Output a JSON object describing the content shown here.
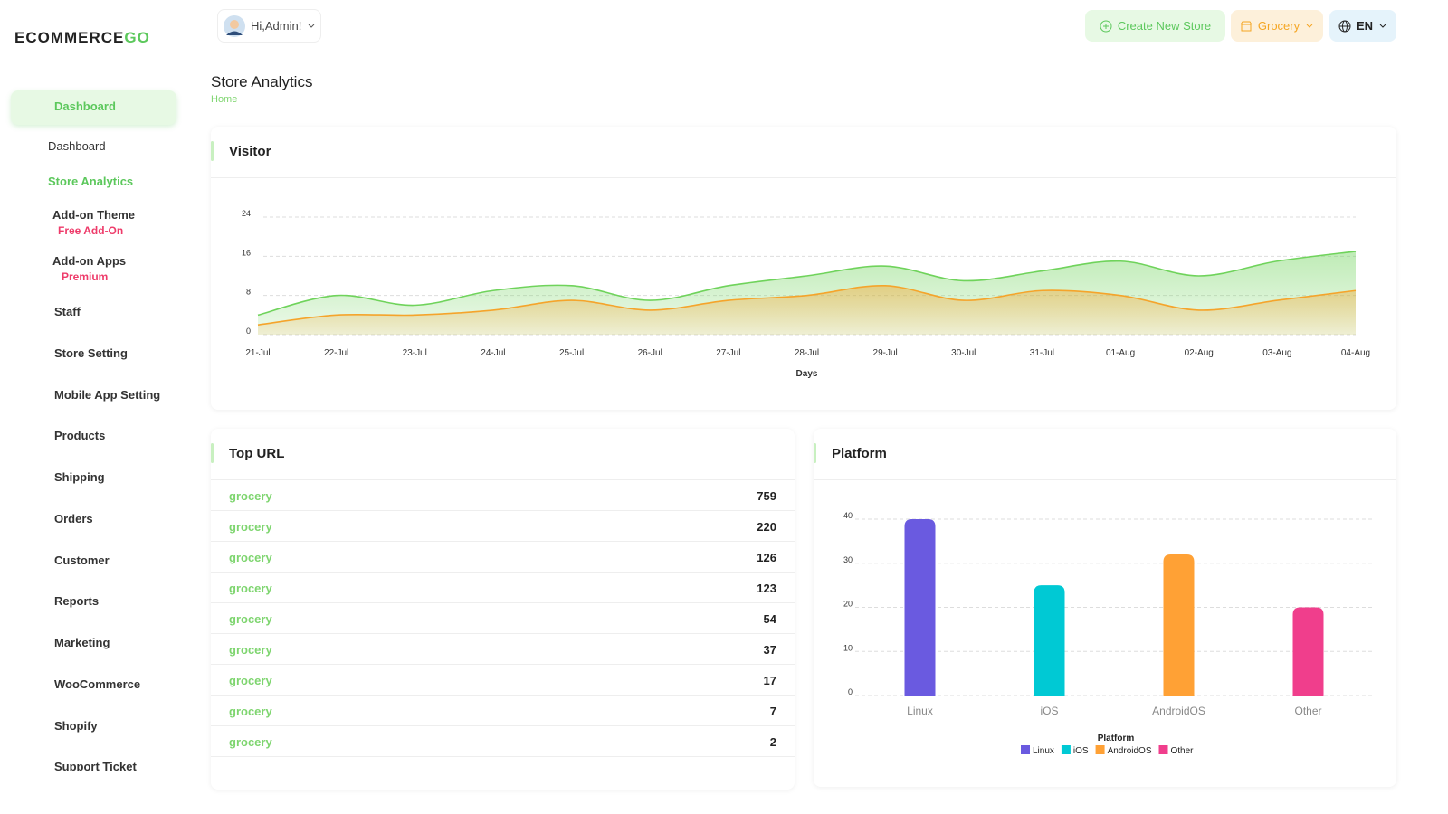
{
  "header": {
    "logo_main": "ECOMMERCE",
    "logo_accent": "GO",
    "greeting": "Hi,Admin!",
    "create_store": "Create New Store",
    "store": "Grocery",
    "language": "EN"
  },
  "page": {
    "title": "Store Analytics",
    "breadcrumb": "Home"
  },
  "sidebar": {
    "items": [
      {
        "label": "Dashboard",
        "active": true,
        "expanded": true
      },
      {
        "label": "Dashboard",
        "sub": true
      },
      {
        "label": "Store Analytics",
        "sub": true,
        "active": true
      },
      {
        "label": "Add-on Theme",
        "badge": "Free Add-On"
      },
      {
        "label": "Add-on Apps",
        "badge": "Premium"
      },
      {
        "label": "Staff",
        "has_submenu": true
      },
      {
        "label": "Store Setting"
      },
      {
        "label": "Mobile App Setting"
      },
      {
        "label": "Products",
        "has_submenu": true
      },
      {
        "label": "Shipping",
        "has_submenu": true
      },
      {
        "label": "Orders",
        "has_submenu": true
      },
      {
        "label": "Customer"
      },
      {
        "label": "Reports",
        "has_submenu": true
      },
      {
        "label": "Marketing",
        "has_submenu": true
      },
      {
        "label": "WooCommerce",
        "has_submenu": true
      },
      {
        "label": "Shopify",
        "has_submenu": true
      },
      {
        "label": "Support Ticket"
      }
    ]
  },
  "cards": {
    "visitor": "Visitor",
    "top_url": "Top URL",
    "platform": "Platform"
  },
  "top_url": {
    "rows": [
      [
        "grocery",
        759
      ],
      [
        "grocery",
        220
      ],
      [
        "grocery",
        126
      ],
      [
        "grocery",
        123
      ],
      [
        "grocery",
        54
      ],
      [
        "grocery",
        37
      ],
      [
        "grocery",
        17
      ],
      [
        "grocery",
        7
      ],
      [
        "grocery",
        2
      ]
    ]
  },
  "chart_data": [
    {
      "type": "area",
      "x_label": "Days",
      "categories": [
        "21-Jul",
        "22-Jul",
        "23-Jul",
        "24-Jul",
        "25-Jul",
        "26-Jul",
        "27-Jul",
        "28-Jul",
        "29-Jul",
        "30-Jul",
        "31-Jul",
        "01-Aug",
        "02-Aug",
        "03-Aug",
        "04-Aug"
      ],
      "series": [
        {
          "color": "#6fd35b",
          "values": [
            4,
            8,
            6,
            9,
            10,
            7,
            10,
            12,
            14,
            11,
            13,
            15,
            12,
            15,
            17
          ]
        },
        {
          "color": "#f5a42b",
          "values": [
            2,
            4,
            4,
            5,
            7,
            5,
            7,
            8,
            10,
            7,
            9,
            8,
            5,
            7,
            9
          ]
        }
      ],
      "ylim": [
        0,
        24
      ],
      "yticks": [
        0,
        8,
        16,
        24
      ],
      "grid": true
    },
    {
      "type": "bar",
      "categories": [
        "Linux",
        "iOS",
        "AndroidOS",
        "Other"
      ],
      "values": [
        40,
        25,
        32,
        20
      ],
      "colors": [
        "#6a5ae0",
        "#00c9d4",
        "#ffa135",
        "#f03e8c"
      ],
      "ylim": [
        0,
        40
      ],
      "yticks": [
        0,
        10,
        20,
        30,
        40
      ],
      "grid": true,
      "legend_title": "Platform",
      "legend": "bottom"
    }
  ]
}
